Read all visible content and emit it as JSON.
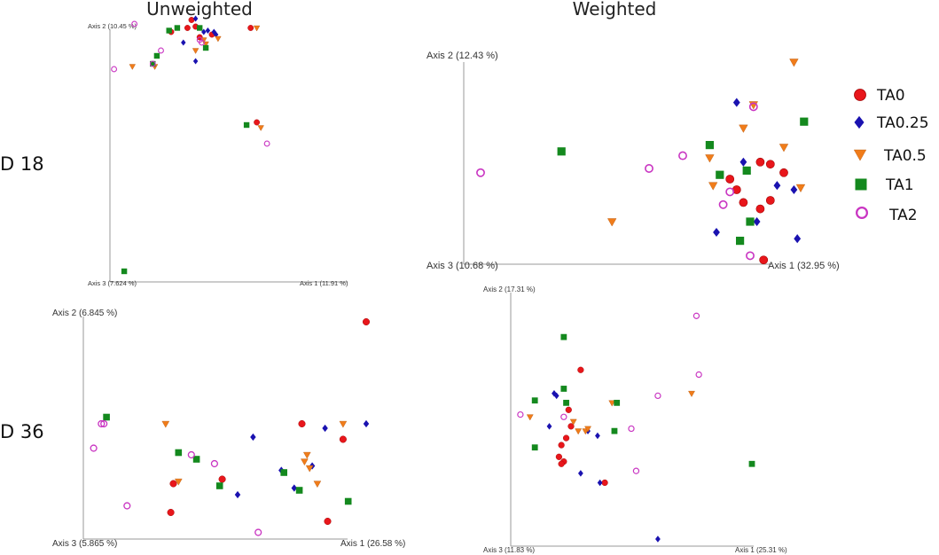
{
  "colors": {
    "TA0": "#e8161b",
    "TA0.25": "#1a12b0",
    "TA0.5": "#f07c1a",
    "TA1": "#14891e",
    "TA2": "#c935c2"
  },
  "legend": [
    {
      "name": "TA0",
      "shape": "circle"
    },
    {
      "name": "TA0.25",
      "shape": "diamond"
    },
    {
      "name": "TA0.5",
      "shape": "triangle-down"
    },
    {
      "name": "TA1",
      "shape": "square"
    },
    {
      "name": "TA2",
      "shape": "open-circle"
    }
  ],
  "chart_data": [
    {
      "type": "scatter",
      "title": "Unweighted",
      "row_label": "D 18",
      "axis1": "Axis 1 (11.91 %)",
      "axis2": "Axis 2 (10.45 %)",
      "axis3": "Axis 3 (7.624 %)",
      "series": [
        {
          "name": "TA0",
          "x": [
            0.4,
            0.42,
            0.38,
            0.3,
            0.44,
            0.5,
            0.69,
            0.72
          ],
          "y": [
            0.985,
            0.96,
            0.955,
            0.94,
            0.92,
            0.93,
            0.955,
            0.6
          ]
        },
        {
          "name": "TA0.25",
          "x": [
            0.42,
            0.36,
            0.46,
            0.48,
            0.51,
            0.52,
            0.42
          ],
          "y": [
            0.99,
            0.9,
            0.94,
            0.945,
            0.94,
            0.93,
            0.83
          ]
        },
        {
          "name": "TA0.5",
          "x": [
            0.42,
            0.53,
            0.72,
            0.11,
            0.22,
            0.47,
            0.74,
            0.46
          ],
          "y": [
            0.87,
            0.915,
            0.955,
            0.81,
            0.81,
            0.895,
            0.58,
            0.91
          ]
        },
        {
          "name": "TA1",
          "x": [
            0.29,
            0.33,
            0.47,
            0.23,
            0.44,
            0.67,
            0.07,
            0.21
          ],
          "y": [
            0.945,
            0.955,
            0.88,
            0.85,
            0.955,
            0.59,
            0.04,
            0.82
          ]
        },
        {
          "name": "TA2",
          "x": [
            0.12,
            0.02,
            0.21,
            0.25,
            0.45,
            0.44,
            0.77
          ],
          "y": [
            0.97,
            0.8,
            0.82,
            0.87,
            0.9,
            0.91,
            0.52
          ]
        }
      ]
    },
    {
      "type": "scatter",
      "title": "Weighted",
      "row_label": "D 18",
      "axis1": "Axis 1 (32.95 %)",
      "axis2": "Axis 2 (12.43 %)",
      "axis3": "Axis 3 (10.68 %)",
      "series": [
        {
          "name": "TA0",
          "x": [
            0.88,
            0.95,
            0.79,
            0.81,
            0.91,
            0.83,
            0.88,
            0.91,
            0.89
          ],
          "y": [
            0.48,
            0.43,
            0.4,
            0.35,
            0.47,
            0.29,
            0.26,
            0.3,
            0.02
          ]
        },
        {
          "name": "TA0.25",
          "x": [
            0.81,
            0.75,
            0.87,
            0.99,
            0.83,
            0.98,
            0.93
          ],
          "y": [
            0.76,
            0.15,
            0.2,
            0.12,
            0.48,
            0.35,
            0.37
          ]
        },
        {
          "name": "TA0.5",
          "x": [
            0.98,
            0.83,
            0.95,
            0.73,
            0.74,
            1.0,
            0.44,
            0.86
          ],
          "y": [
            0.95,
            0.64,
            0.55,
            0.5,
            0.37,
            0.36,
            0.2,
            0.75
          ]
        },
        {
          "name": "TA1",
          "x": [
            1.01,
            0.29,
            0.73,
            0.76,
            0.84,
            0.85,
            0.82
          ],
          "y": [
            0.67,
            0.53,
            0.56,
            0.42,
            0.44,
            0.2,
            0.11
          ]
        },
        {
          "name": "TA2",
          "x": [
            0.05,
            0.55,
            0.65,
            0.86,
            0.79,
            0.77,
            0.85
          ],
          "y": [
            0.43,
            0.45,
            0.51,
            0.74,
            0.34,
            0.28,
            0.04
          ]
        }
      ]
    },
    {
      "type": "scatter",
      "title": "",
      "row_label": "D 36",
      "axis1": "Axis 1 (26.58 %)",
      "axis2": "Axis 2 (6.845 %)",
      "axis3": "Axis 3 (5.865 %)",
      "series": [
        {
          "name": "TA0",
          "x": [
            1.1,
            0.85,
            0.35,
            0.54,
            0.34,
            0.95,
            1.01
          ],
          "y": [
            0.98,
            0.52,
            0.25,
            0.27,
            0.12,
            0.08,
            0.45
          ]
        },
        {
          "name": "TA0.25",
          "x": [
            0.66,
            0.94,
            1.1,
            0.77,
            0.82,
            0.89,
            0.6
          ],
          "y": [
            0.46,
            0.5,
            0.52,
            0.31,
            0.23,
            0.33,
            0.2
          ]
        },
        {
          "name": "TA0.5",
          "x": [
            0.32,
            1.01,
            0.87,
            0.86,
            0.88,
            0.91,
            0.37
          ],
          "y": [
            0.52,
            0.52,
            0.38,
            0.35,
            0.32,
            0.25,
            0.26
          ]
        },
        {
          "name": "TA1",
          "x": [
            0.09,
            0.37,
            0.44,
            0.78,
            0.84,
            1.03,
            0.53
          ],
          "y": [
            0.55,
            0.39,
            0.36,
            0.3,
            0.22,
            0.17,
            0.24
          ]
        },
        {
          "name": "TA2",
          "x": [
            0.07,
            0.08,
            0.04,
            0.42,
            0.51,
            0.17,
            0.68
          ],
          "y": [
            0.52,
            0.52,
            0.41,
            0.38,
            0.34,
            0.15,
            0.03
          ]
        }
      ]
    },
    {
      "type": "scatter",
      "title": "",
      "row_label": "D 36",
      "axis1": "Axis 1 (25.31 %)",
      "axis2": "Axis 2 (17.31 %)",
      "axis3": "Axis 3 (11.83 %)",
      "series": [
        {
          "name": "TA0",
          "x": [
            0.29,
            0.24,
            0.25,
            0.23,
            0.21,
            0.2,
            0.22,
            0.21,
            0.39
          ],
          "y": [
            0.75,
            0.58,
            0.51,
            0.46,
            0.43,
            0.38,
            0.36,
            0.35,
            0.27
          ]
        },
        {
          "name": "TA0.25",
          "x": [
            0.19,
            0.18,
            0.16,
            0.36,
            0.32,
            0.29,
            0.37,
            0.61
          ],
          "y": [
            0.64,
            0.65,
            0.51,
            0.47,
            0.49,
            0.31,
            0.27,
            0.03
          ]
        },
        {
          "name": "TA0.5",
          "x": [
            0.42,
            0.75,
            0.26,
            0.28,
            0.31,
            0.32,
            0.08
          ],
          "y": [
            0.61,
            0.65,
            0.53,
            0.49,
            0.49,
            0.5,
            0.55
          ]
        },
        {
          "name": "TA1",
          "x": [
            0.22,
            0.23,
            0.1,
            0.44,
            0.43,
            0.1,
            1.0,
            0.22
          ],
          "y": [
            0.89,
            0.61,
            0.62,
            0.61,
            0.49,
            0.42,
            0.35,
            0.67
          ]
        },
        {
          "name": "TA2",
          "x": [
            0.77,
            0.78,
            0.61,
            0.5,
            0.52,
            0.22,
            0.04
          ],
          "y": [
            0.98,
            0.73,
            0.64,
            0.5,
            0.32,
            0.55,
            0.56
          ]
        }
      ]
    }
  ]
}
